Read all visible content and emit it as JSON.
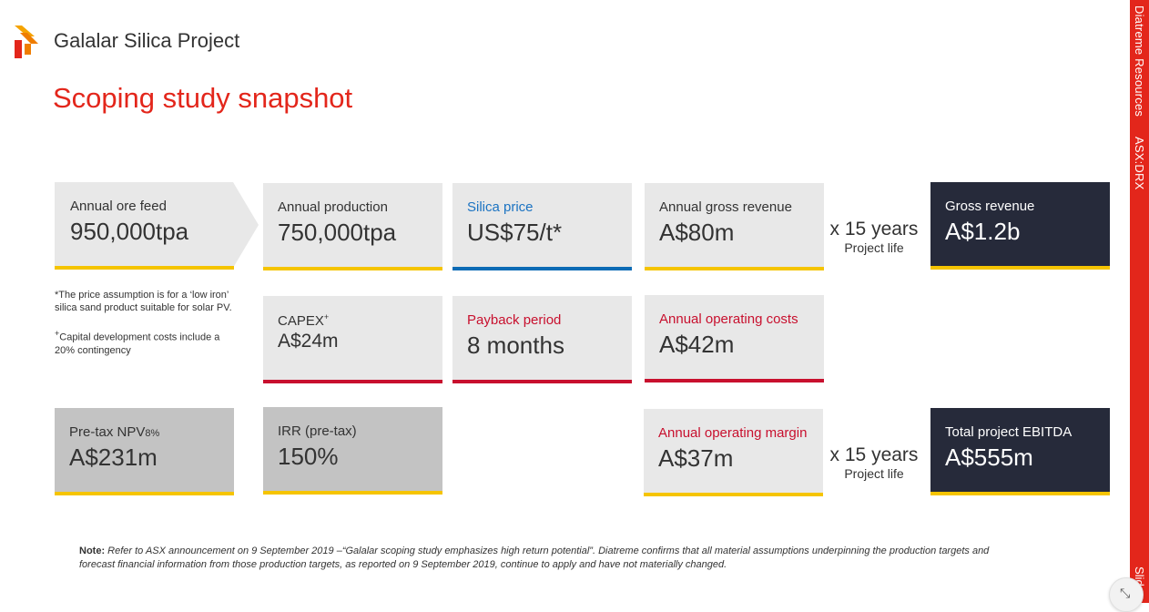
{
  "header": {
    "project_title": "Galalar Silica Project",
    "slide_title": "Scoping study snapshot"
  },
  "side_bar": {
    "company": "Diatreme Resources",
    "ticker": "ASX:DRX",
    "bottom_text": "Slid"
  },
  "colors": {
    "brand_red": "#e3261b",
    "accent_yellow": "#f5c400",
    "accent_blue": "#0c6bb5",
    "dark_navy": "#262a3a"
  },
  "cards": {
    "ore_feed": {
      "label": "Annual ore feed",
      "value": "950,000tpa"
    },
    "production": {
      "label": "Annual production",
      "value": "750,000tpa"
    },
    "silica_price": {
      "label": "Silica price",
      "value": "US$75/t*"
    },
    "gross_revenue_annual": {
      "label": "Annual gross revenue",
      "value": "A$80m"
    },
    "gross_revenue_total": {
      "label": "Gross revenue",
      "value": "A$1.2b"
    },
    "capex": {
      "label": "CAPEX",
      "label_sup": "+",
      "value": "A$24m"
    },
    "payback": {
      "label": "Payback period",
      "value": "8 months"
    },
    "operating_costs": {
      "label": "Annual operating costs",
      "value": "A$42m"
    },
    "npv": {
      "label": "Pre-tax NPV",
      "label_sub": "8%",
      "value": "A$231m"
    },
    "irr": {
      "label": "IRR (pre-tax)",
      "value": "150%"
    },
    "operating_margin": {
      "label": "Annual operating margin",
      "value": "A$37m"
    },
    "ebitda": {
      "label": "Total project EBITDA",
      "value": "A$555m"
    }
  },
  "multipliers": {
    "revenue": {
      "years": "x 15 years",
      "caption": "Project life"
    },
    "ebitda": {
      "years": "x 15 years",
      "caption": "Project life"
    }
  },
  "footnotes": {
    "price": "*The price assumption is for a ‘low iron’ silica sand product suitable for solar PV.",
    "capex_mark": "+",
    "capex": "Capital development costs include a 20% contingency"
  },
  "note": {
    "label": "Note:",
    "text": " Refer to ASX announcement on 9 September 2019 –“Galalar scoping study emphasizes high return potential”. Diatreme confirms that all material assumptions underpinning the production targets and forecast financial information from those production targets, as reported on 9 September 2019, continue to apply and have not materially changed."
  },
  "controls": {
    "fullscreen_glyph": "⤡"
  }
}
